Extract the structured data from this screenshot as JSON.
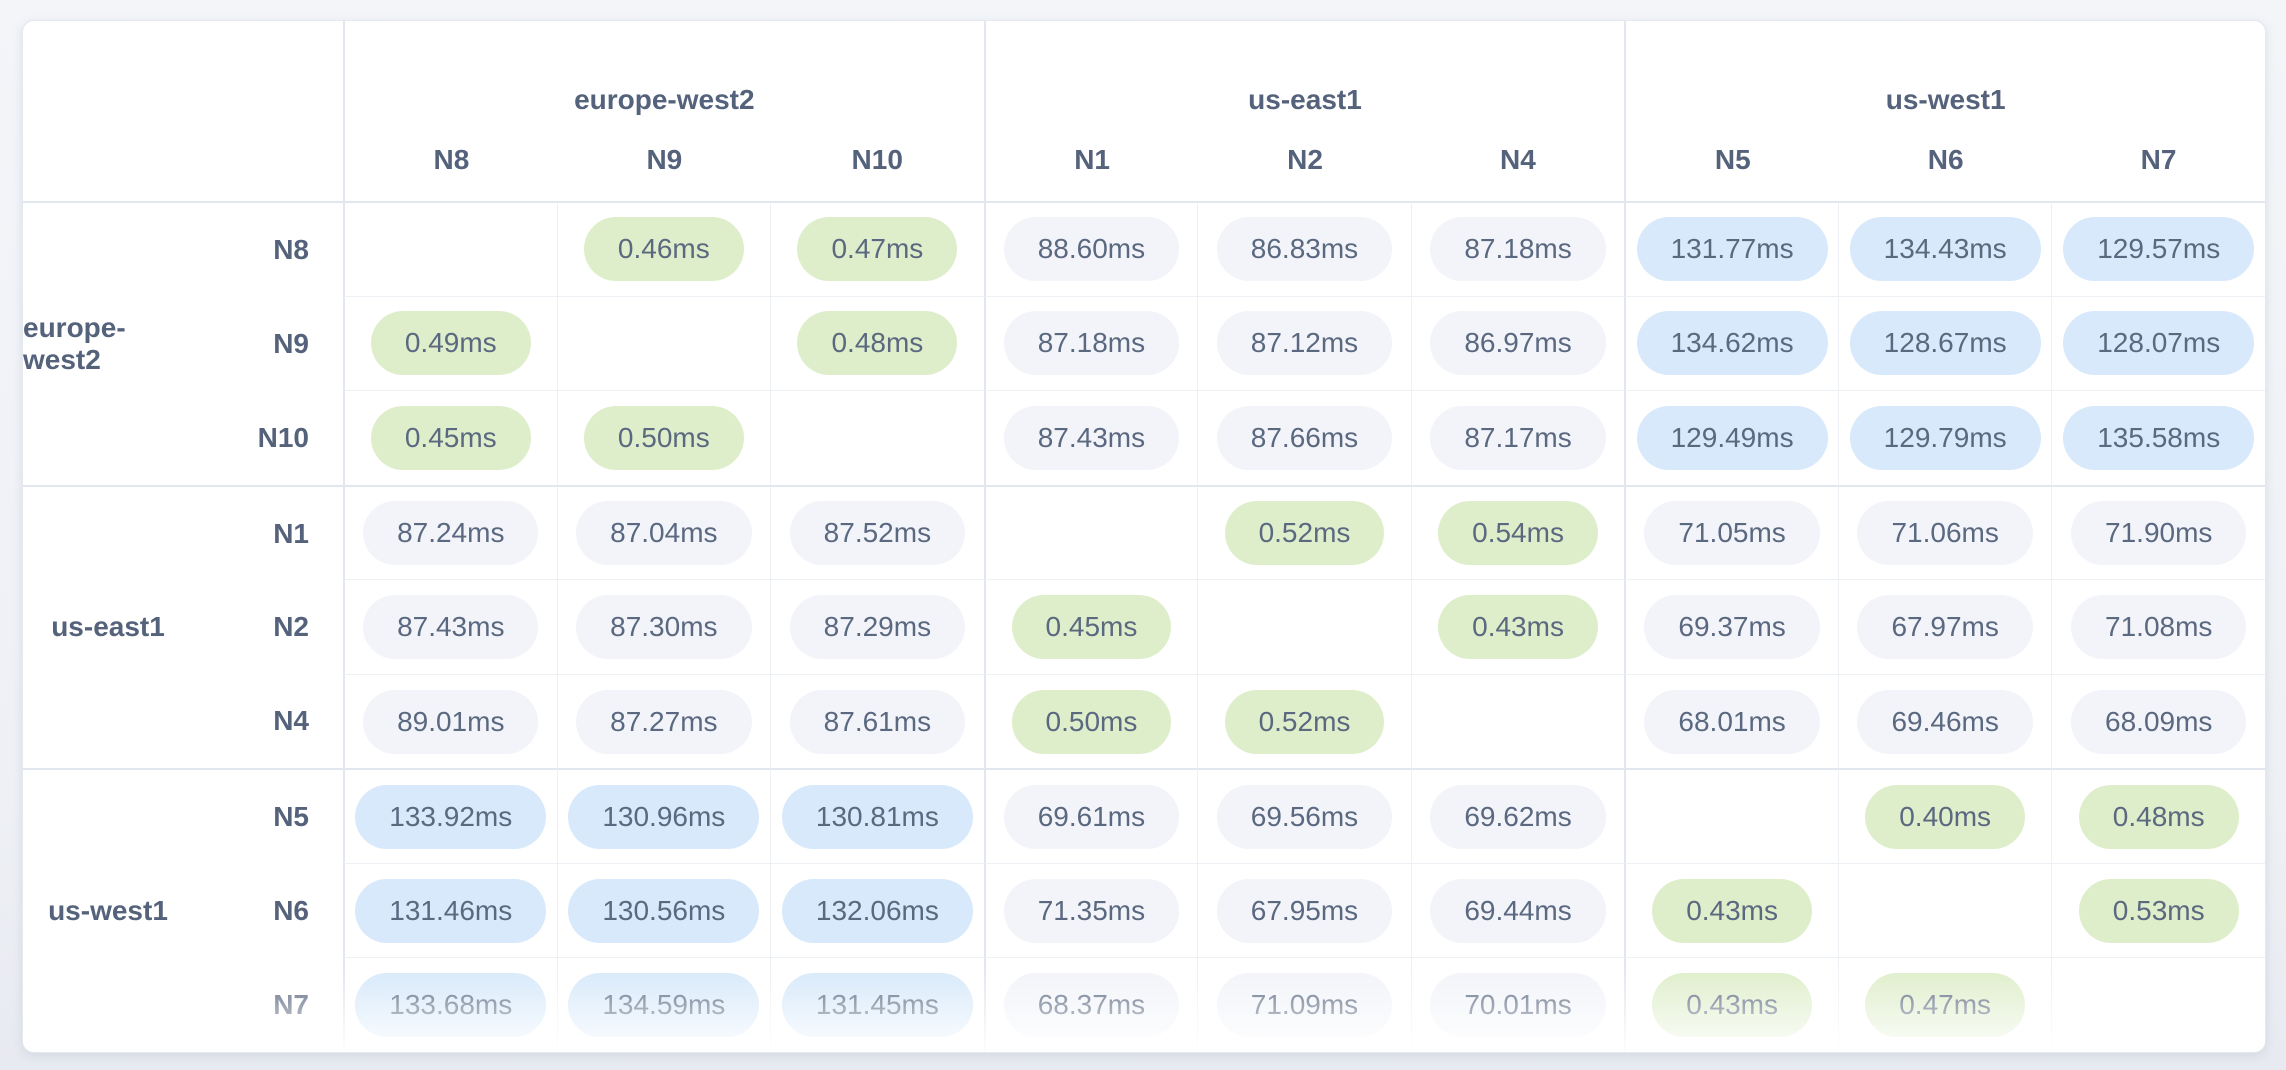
{
  "matrix": {
    "unit": "ms",
    "column_groups": [
      {
        "region": "europe-west2",
        "nodes": [
          "N8",
          "N9",
          "N10"
        ]
      },
      {
        "region": "us-east1",
        "nodes": [
          "N1",
          "N2",
          "N4"
        ]
      },
      {
        "region": "us-west1",
        "nodes": [
          "N5",
          "N6",
          "N7"
        ]
      }
    ],
    "row_groups": [
      {
        "region": "europe-west2",
        "rows": [
          {
            "node": "N8",
            "cells": [
              "",
              "0.46ms",
              "0.47ms",
              "88.60ms",
              "86.83ms",
              "87.18ms",
              "131.77ms",
              "134.43ms",
              "129.57ms"
            ]
          },
          {
            "node": "N9",
            "cells": [
              "0.49ms",
              "",
              "0.48ms",
              "87.18ms",
              "87.12ms",
              "86.97ms",
              "134.62ms",
              "128.67ms",
              "128.07ms"
            ]
          },
          {
            "node": "N10",
            "cells": [
              "0.45ms",
              "0.50ms",
              "",
              "87.43ms",
              "87.66ms",
              "87.17ms",
              "129.49ms",
              "129.79ms",
              "135.58ms"
            ]
          }
        ]
      },
      {
        "region": "us-east1",
        "rows": [
          {
            "node": "N1",
            "cells": [
              "87.24ms",
              "87.04ms",
              "87.52ms",
              "",
              "0.52ms",
              "0.54ms",
              "71.05ms",
              "71.06ms",
              "71.90ms"
            ]
          },
          {
            "node": "N2",
            "cells": [
              "87.43ms",
              "87.30ms",
              "87.29ms",
              "0.45ms",
              "",
              "0.43ms",
              "69.37ms",
              "67.97ms",
              "71.08ms"
            ]
          },
          {
            "node": "N4",
            "cells": [
              "89.01ms",
              "87.27ms",
              "87.61ms",
              "0.50ms",
              "0.52ms",
              "",
              "68.01ms",
              "69.46ms",
              "68.09ms"
            ]
          }
        ]
      },
      {
        "region": "us-west1",
        "rows": [
          {
            "node": "N5",
            "cells": [
              "133.92ms",
              "130.96ms",
              "130.81ms",
              "69.61ms",
              "69.56ms",
              "69.62ms",
              "",
              "0.40ms",
              "0.48ms"
            ]
          },
          {
            "node": "N6",
            "cells": [
              "131.46ms",
              "130.56ms",
              "132.06ms",
              "71.35ms",
              "67.95ms",
              "69.44ms",
              "0.43ms",
              "",
              "0.53ms"
            ]
          },
          {
            "node": "N7",
            "cells": [
              "133.68ms",
              "134.59ms",
              "131.45ms",
              "68.37ms",
              "71.09ms",
              "70.01ms",
              "0.43ms",
              "0.47ms",
              ""
            ]
          }
        ]
      }
    ],
    "colors": {
      "same_region_pill": "#deeeca",
      "medium_latency_pill": "#f2f4f9",
      "high_latency_pill": "#d7e9fa",
      "header_text": "#55627b",
      "value_text": "#5a6880"
    }
  }
}
